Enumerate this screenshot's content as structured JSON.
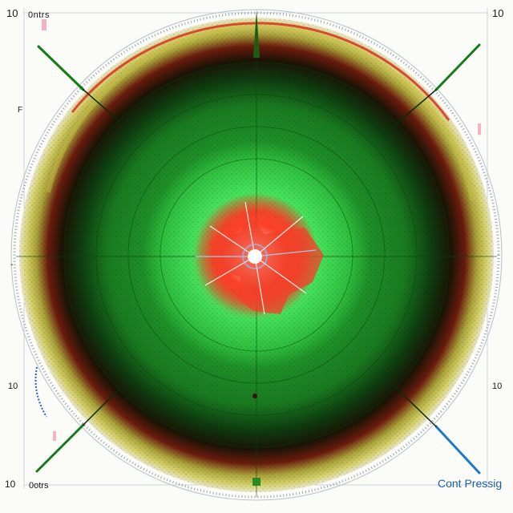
{
  "labels": {
    "top_left_number": "10",
    "top_left_text": "0ntrs",
    "top_right_number": "10",
    "left_mid_mark": "F",
    "left_edge_mark": "-",
    "bottom_left_number": "10",
    "bottom_right_number": "10",
    "bottom_left_number_2": "10",
    "bottom_left_text": "0otrs",
    "bottom_right_text": "Cont Pressig"
  },
  "colors": {
    "background": "#fbfbf8",
    "outer_ring_red": "#d93022",
    "outer_ring_yellow": "#c9c24a",
    "dark_band": "#0d2a0d",
    "green_field": "#1d8a22",
    "inner_green": "#4be05a",
    "core_red": "#f03b26",
    "core_white": "#ffffff",
    "diagonal_lines": "#157a18",
    "bottom_right_text": "#1f5fa0"
  }
}
